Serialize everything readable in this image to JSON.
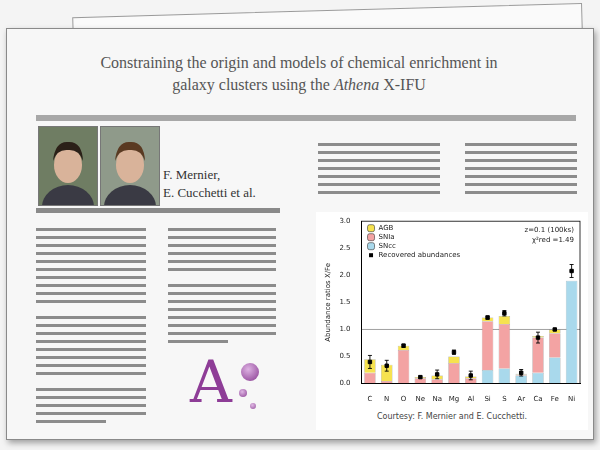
{
  "document": {
    "title_lines": [
      [
        {
          "text": "Constraining the origin and models of chemical enrichment in"
        }
      ],
      [
        {
          "text": "galaxy clusters using the "
        },
        {
          "text": "Athena",
          "italic": true
        },
        {
          "text": " X-IFU"
        }
      ]
    ],
    "authors": [
      "F. Mernier,",
      "E. Cucchetti et al."
    ],
    "logo": "A",
    "figure_credit": "Courtesy: F. Mernier and E. Cucchetti."
  },
  "chart_data": {
    "type": "bar",
    "stacked": true,
    "y_label": "Abundance ratios X/Fe",
    "categories": [
      "C",
      "N",
      "O",
      "Ne",
      "Na",
      "Mg",
      "Al",
      "Si",
      "S",
      "Ar",
      "Ca",
      "Fe",
      "Ni"
    ],
    "series": [
      {
        "name": "AGB",
        "color": "#f6e24f",
        "values": [
          0.25,
          0.3,
          0.08,
          0.02,
          0.07,
          0.12,
          0.03,
          0.07,
          0.15,
          0.01,
          0.03,
          0.07,
          0
        ]
      },
      {
        "name": "SNIa",
        "color": "#f3a3a3",
        "values": [
          0.2,
          0.05,
          0.62,
          0.1,
          0.08,
          0.38,
          0.1,
          0.9,
          0.82,
          0.02,
          0.65,
          0.45,
          0
        ]
      },
      {
        "name": "SNcc",
        "color": "#a9d9ec",
        "values": [
          0,
          0,
          0,
          0,
          0,
          0,
          0,
          0.25,
          0.28,
          0.15,
          0.2,
          0.48,
          1.9
        ]
      },
      {
        "name": "Recovered abundances",
        "type": "scatter",
        "marker": "square",
        "color": "#000000",
        "values": [
          0.4,
          0.33,
          0.7,
          0.12,
          0.17,
          0.58,
          0.15,
          1.22,
          1.3,
          0.2,
          0.85,
          1.0,
          2.08
        ],
        "errors": [
          0.12,
          0.1,
          0.03,
          0.02,
          0.08,
          0.04,
          0.08,
          0.03,
          0.05,
          0.06,
          0.1,
          0.02,
          0.12
        ]
      }
    ],
    "ylim": [
      0,
      3
    ],
    "yticks": [
      {
        "value": 0,
        "label": "0.0"
      },
      {
        "value": 0.5,
        "label": "0.5"
      },
      {
        "value": 1,
        "label": "1.0"
      },
      {
        "value": 1.5,
        "label": "1.5"
      },
      {
        "value": 2,
        "label": "2.0"
      },
      {
        "value": 2.5,
        "label": "2.5"
      },
      {
        "value": 3,
        "label": "3.0"
      }
    ],
    "reference_line": 1.0,
    "annotations": [
      "z=0.1 (100ks)",
      "χ²red =1.49"
    ],
    "legend": "top-left",
    "grid": false
  }
}
